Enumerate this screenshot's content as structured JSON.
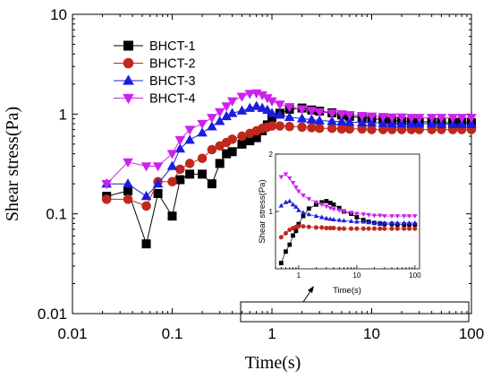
{
  "chart_data": [
    {
      "type": "scatter",
      "xlabel": "Time(s)",
      "ylabel": "Shear stress(Pa)",
      "xscale": "log",
      "yscale": "log",
      "xlim": [
        0.01,
        100
      ],
      "ylim": [
        0.01,
        10
      ],
      "xticks": [
        "0.01",
        "0.1",
        "1",
        "10",
        "100"
      ],
      "yticks": [
        "0.01",
        "0.1",
        "1",
        "10"
      ],
      "legend_position": "top-left",
      "series": [
        {
          "name": "BHCT-1",
          "color": "#000000",
          "marker": "square",
          "x": [
            0.022,
            0.036,
            0.055,
            0.072,
            0.1,
            0.12,
            0.15,
            0.2,
            0.25,
            0.3,
            0.35,
            0.4,
            0.5,
            0.6,
            0.7,
            0.8,
            0.9,
            1,
            1.2,
            1.5,
            2,
            2.5,
            3,
            4,
            5,
            6,
            8,
            10,
            13,
            16,
            20,
            25,
            30,
            40,
            50,
            65,
            80,
            100
          ],
          "y": [
            0.15,
            0.17,
            0.05,
            0.16,
            0.095,
            0.22,
            0.25,
            0.25,
            0.2,
            0.32,
            0.4,
            0.42,
            0.5,
            0.54,
            0.58,
            0.68,
            0.78,
            0.92,
            1.02,
            1.12,
            1.15,
            1.1,
            1.07,
            1.03,
            0.98,
            0.95,
            0.92,
            0.9,
            0.88,
            0.86,
            0.85,
            0.84,
            0.84,
            0.83,
            0.82,
            0.82,
            0.82,
            0.82
          ]
        },
        {
          "name": "BHCT-2",
          "color": "#c0281c",
          "marker": "circle",
          "x": [
            0.022,
            0.036,
            0.055,
            0.072,
            0.1,
            0.12,
            0.15,
            0.2,
            0.25,
            0.3,
            0.35,
            0.4,
            0.5,
            0.6,
            0.7,
            0.8,
            0.9,
            1,
            1.2,
            1.5,
            2,
            2.5,
            3,
            4,
            5,
            6,
            8,
            10,
            13,
            16,
            20,
            25,
            30,
            40,
            50,
            65,
            80,
            100
          ],
          "y": [
            0.14,
            0.14,
            0.12,
            0.21,
            0.21,
            0.28,
            0.32,
            0.36,
            0.44,
            0.48,
            0.52,
            0.56,
            0.6,
            0.64,
            0.68,
            0.72,
            0.74,
            0.76,
            0.76,
            0.75,
            0.74,
            0.73,
            0.72,
            0.72,
            0.71,
            0.71,
            0.71,
            0.7,
            0.7,
            0.7,
            0.7,
            0.7,
            0.7,
            0.7,
            0.7,
            0.7,
            0.7,
            0.7
          ]
        },
        {
          "name": "BHCT-3",
          "color": "#1c1ce0",
          "marker": "triangle-up",
          "x": [
            0.022,
            0.036,
            0.055,
            0.072,
            0.1,
            0.12,
            0.15,
            0.2,
            0.25,
            0.3,
            0.35,
            0.4,
            0.5,
            0.6,
            0.7,
            0.8,
            0.9,
            1,
            1.2,
            1.5,
            2,
            2.5,
            3,
            4,
            5,
            6,
            8,
            10,
            13,
            16,
            20,
            25,
            30,
            40,
            50,
            65,
            80,
            100
          ],
          "y": [
            0.2,
            0.2,
            0.15,
            0.2,
            0.3,
            0.45,
            0.55,
            0.65,
            0.75,
            0.85,
            0.95,
            1.02,
            1.08,
            1.15,
            1.2,
            1.15,
            1.1,
            1.02,
            0.98,
            0.93,
            0.9,
            0.88,
            0.86,
            0.85,
            0.84,
            0.83,
            0.82,
            0.82,
            0.81,
            0.8,
            0.8,
            0.8,
            0.8,
            0.8,
            0.79,
            0.79,
            0.79,
            0.79
          ]
        },
        {
          "name": "BHCT-4",
          "color": "#cc22ee",
          "marker": "triangle-down",
          "x": [
            0.022,
            0.036,
            0.055,
            0.072,
            0.1,
            0.12,
            0.15,
            0.2,
            0.25,
            0.3,
            0.35,
            0.4,
            0.5,
            0.6,
            0.7,
            0.8,
            0.9,
            1,
            1.2,
            1.5,
            2,
            2.5,
            3,
            4,
            5,
            6,
            8,
            10,
            13,
            16,
            20,
            25,
            30,
            40,
            50,
            65,
            80,
            100
          ],
          "y": [
            0.2,
            0.33,
            0.3,
            0.3,
            0.4,
            0.55,
            0.7,
            0.8,
            0.92,
            1.05,
            1.2,
            1.35,
            1.5,
            1.6,
            1.62,
            1.55,
            1.45,
            1.35,
            1.25,
            1.18,
            1.12,
            1.08,
            1.05,
            1.02,
            1.0,
            0.98,
            0.96,
            0.95,
            0.94,
            0.93,
            0.93,
            0.92,
            0.92,
            0.92,
            0.92,
            0.92,
            0.92,
            0.92
          ]
        }
      ]
    },
    {
      "type": "scatter",
      "role": "inset",
      "xlabel": "Time(s)",
      "ylabel": "Shear stress(Pa)",
      "xscale": "log",
      "xlim": [
        0.4,
        120
      ],
      "ylim": [
        0,
        2
      ],
      "xticks": [
        "1",
        "10",
        "100"
      ],
      "yticks": [
        "1",
        "2"
      ],
      "series": [
        {
          "name": "BHCT-1",
          "color": "#000000",
          "marker": "square",
          "x": [
            0.5,
            0.6,
            0.7,
            0.8,
            0.9,
            1.0,
            1.2,
            1.5,
            2.0,
            2.5,
            3.0,
            3.5,
            4.0,
            5.0,
            6.0,
            8.0,
            10,
            13,
            16,
            20,
            25,
            30,
            40,
            50,
            65,
            80,
            100
          ],
          "y": [
            0.1,
            0.3,
            0.42,
            0.58,
            0.66,
            0.78,
            0.92,
            1.05,
            1.12,
            1.16,
            1.18,
            1.15,
            1.12,
            1.06,
            1.0,
            0.96,
            0.9,
            0.85,
            0.82,
            0.8,
            0.79,
            0.78,
            0.78,
            0.77,
            0.77,
            0.77,
            0.77
          ]
        },
        {
          "name": "BHCT-2",
          "color": "#c0281c",
          "marker": "circle",
          "x": [
            0.5,
            0.6,
            0.7,
            0.8,
            0.9,
            1.0,
            1.2,
            1.5,
            2.0,
            2.5,
            3.0,
            3.5,
            4.0,
            5.0,
            6.0,
            8.0,
            10,
            13,
            16,
            20,
            25,
            30,
            40,
            50,
            65,
            80,
            100
          ],
          "y": [
            0.55,
            0.62,
            0.68,
            0.71,
            0.73,
            0.74,
            0.74,
            0.73,
            0.72,
            0.72,
            0.71,
            0.71,
            0.71,
            0.7,
            0.7,
            0.7,
            0.7,
            0.7,
            0.7,
            0.7,
            0.7,
            0.7,
            0.7,
            0.7,
            0.7,
            0.7,
            0.7
          ]
        },
        {
          "name": "BHCT-3",
          "color": "#1c1ce0",
          "marker": "triangle-up",
          "x": [
            0.5,
            0.6,
            0.7,
            0.8,
            0.9,
            1.0,
            1.2,
            1.5,
            2.0,
            2.5,
            3.0,
            3.5,
            4.0,
            5.0,
            6.0,
            8.0,
            10,
            13,
            16,
            20,
            25,
            30,
            40,
            50,
            65,
            80,
            100
          ],
          "y": [
            1.1,
            1.16,
            1.18,
            1.12,
            1.08,
            1.02,
            0.98,
            0.95,
            0.92,
            0.9,
            0.88,
            0.87,
            0.86,
            0.85,
            0.84,
            0.83,
            0.82,
            0.82,
            0.81,
            0.8,
            0.8,
            0.8,
            0.8,
            0.8,
            0.8,
            0.8,
            0.8
          ]
        },
        {
          "name": "BHCT-4",
          "color": "#cc22ee",
          "marker": "triangle-down",
          "x": [
            0.5,
            0.6,
            0.7,
            0.8,
            0.9,
            1.0,
            1.2,
            1.5,
            2.0,
            2.5,
            3.0,
            3.5,
            4.0,
            5.0,
            6.0,
            8.0,
            10,
            13,
            16,
            20,
            25,
            30,
            40,
            50,
            65,
            80,
            100
          ],
          "y": [
            1.6,
            1.65,
            1.58,
            1.5,
            1.42,
            1.35,
            1.28,
            1.22,
            1.16,
            1.12,
            1.09,
            1.06,
            1.04,
            1.02,
            1.0,
            0.98,
            0.96,
            0.95,
            0.94,
            0.93,
            0.93,
            0.92,
            0.92,
            0.92,
            0.92,
            0.92,
            0.92
          ]
        }
      ]
    }
  ]
}
